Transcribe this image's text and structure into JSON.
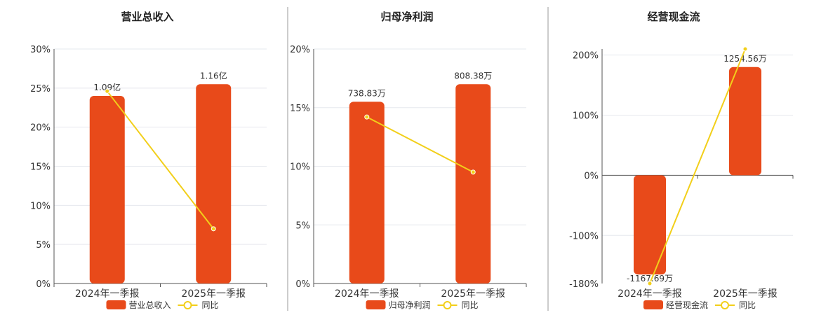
{
  "colors": {
    "bar": "#E84A1A",
    "line": "#F2CF1A",
    "grid": "#E6E8EE",
    "axis": "#555555",
    "divider": "#999999",
    "text": "#333333"
  },
  "chart_data": [
    {
      "type": "bar",
      "title": "营业总收入",
      "categories": [
        "2024年一季报",
        "2025年一季报"
      ],
      "series": [
        {
          "name": "营业总收入",
          "type": "bar",
          "values": [
            24,
            25.5
          ],
          "labels": [
            "1.09亿",
            "1.16亿"
          ]
        },
        {
          "name": "同比",
          "type": "line",
          "values": [
            24.6,
            7.0
          ]
        }
      ],
      "yticks": [
        0,
        5,
        10,
        15,
        20,
        25,
        30
      ],
      "ytick_labels": [
        "0%",
        "5%",
        "10%",
        "15%",
        "20%",
        "25%",
        "30%"
      ],
      "ylim": [
        0,
        30
      ],
      "grid": true,
      "legend": "bottom"
    },
    {
      "type": "bar",
      "title": "归母净利润",
      "categories": [
        "2024年一季报",
        "2025年一季报"
      ],
      "series": [
        {
          "name": "归母净利润",
          "type": "bar",
          "values": [
            15.5,
            17.0
          ],
          "labels": [
            "738.83万",
            "808.38万"
          ]
        },
        {
          "name": "同比",
          "type": "line",
          "values": [
            14.2,
            9.5
          ]
        }
      ],
      "yticks": [
        0,
        5,
        10,
        15,
        20
      ],
      "ytick_labels": [
        "0%",
        "5%",
        "10%",
        "15%",
        "20%"
      ],
      "ylim": [
        0,
        20
      ],
      "grid": true,
      "legend": "bottom"
    },
    {
      "type": "bar",
      "title": "经营现金流",
      "categories": [
        "2024年一季报",
        "2025年一季报"
      ],
      "series": [
        {
          "name": "经营现金流",
          "type": "bar",
          "values": [
            -165,
            180
          ],
          "labels": [
            "-1167.69万",
            "1254.56万"
          ]
        },
        {
          "name": "同比",
          "type": "line",
          "values": [
            -180,
            210
          ]
        }
      ],
      "yticks": [
        -180,
        -100,
        0,
        100,
        200
      ],
      "ytick_labels": [
        "-180%",
        "-100%",
        "0%",
        "100%",
        "200%"
      ],
      "ylim": [
        -180,
        210
      ],
      "grid": true,
      "legend": "bottom"
    }
  ]
}
